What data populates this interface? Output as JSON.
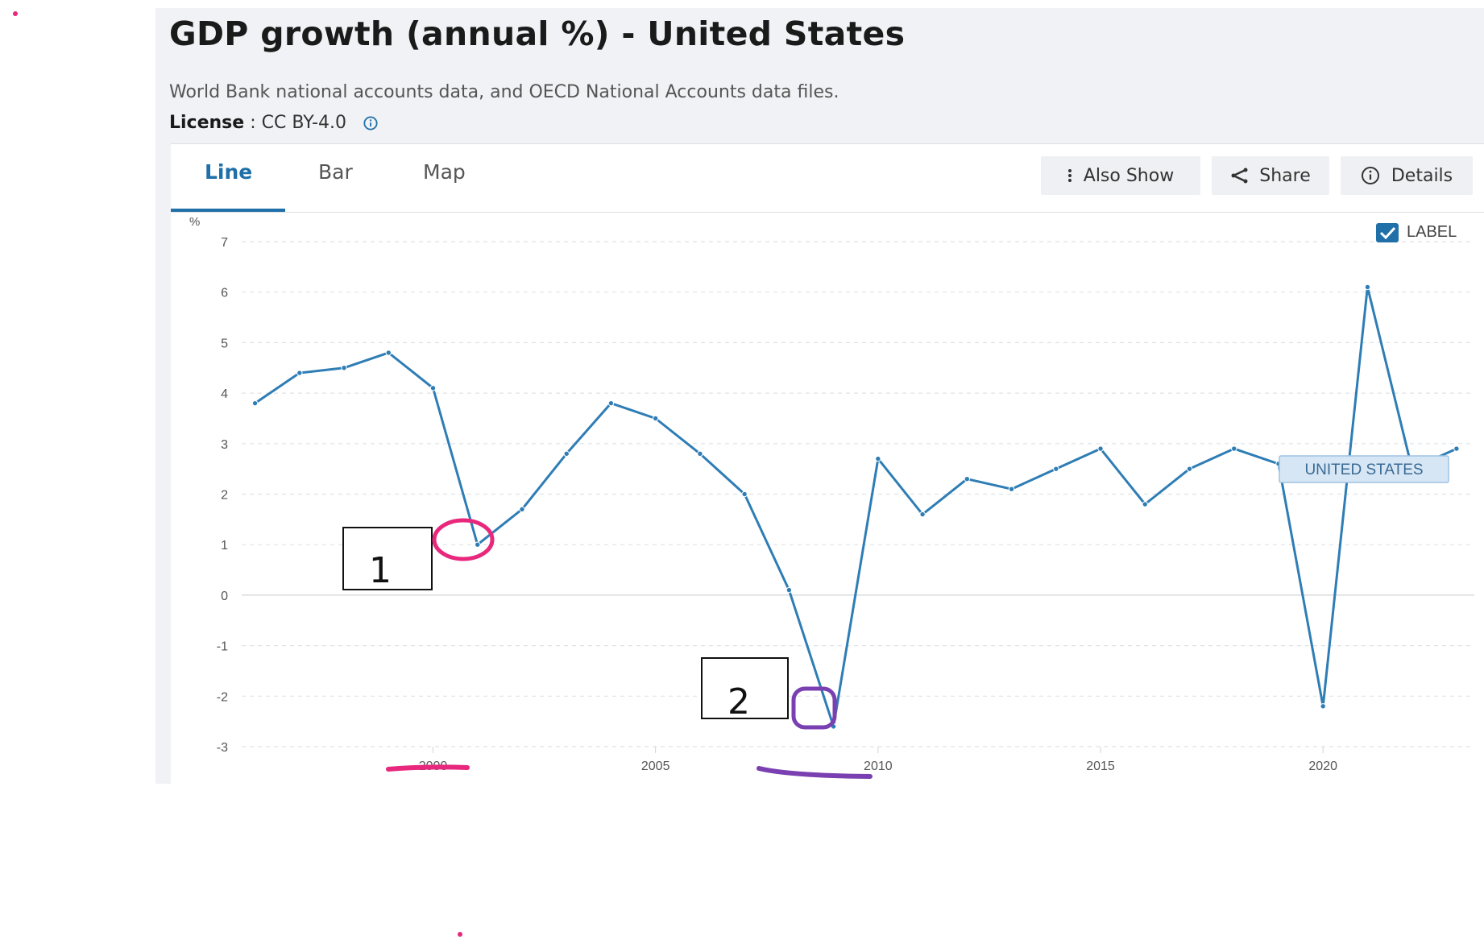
{
  "header": {
    "title": "GDP growth (annual %) - United States",
    "source": "World Bank national accounts data, and OECD National Accounts data files.",
    "license_label": "License",
    "license_sep": " : ",
    "license_value": "CC BY-4.0"
  },
  "tabs": [
    {
      "label": "Line",
      "active": true
    },
    {
      "label": "Bar",
      "active": false
    },
    {
      "label": "Map",
      "active": false
    }
  ],
  "actions": {
    "also_show": "Also Show",
    "share": "Share",
    "details": "Details"
  },
  "label_toggle": {
    "label": "LABEL",
    "checked": true
  },
  "annotations": {
    "box1": "1",
    "box2": "2"
  },
  "colors": {
    "line": "#2e7db5",
    "accent": "#1f6fa8",
    "circle1": "#e8287c",
    "circle2": "#7a3fb0",
    "series_label_bg": "#d6e6f4"
  },
  "chart_data": {
    "type": "line",
    "title": "GDP growth (annual %) - United States",
    "ylabel": "%",
    "xlabel": "",
    "ylim": [
      -3,
      7
    ],
    "xlim": [
      1995.7,
      2023.4
    ],
    "yticks": [
      7,
      6,
      5,
      4,
      3,
      2,
      1,
      0,
      -1,
      -2,
      -3
    ],
    "xticks": [
      2000,
      2005,
      2010,
      2015,
      2020
    ],
    "grid": true,
    "series": [
      {
        "name": "UNITED STATES",
        "x": [
          1996,
          1997,
          1998,
          1999,
          2000,
          2001,
          2002,
          2003,
          2004,
          2005,
          2006,
          2007,
          2008,
          2009,
          2010,
          2011,
          2012,
          2013,
          2014,
          2015,
          2016,
          2017,
          2018,
          2019,
          2020,
          2021,
          2022,
          2023
        ],
        "values": [
          3.8,
          4.4,
          4.5,
          4.8,
          4.1,
          1.0,
          1.7,
          2.8,
          3.8,
          3.5,
          2.8,
          2.0,
          0.1,
          -2.6,
          2.7,
          1.6,
          2.3,
          2.1,
          2.5,
          2.9,
          1.8,
          2.5,
          2.9,
          2.6,
          -2.2,
          6.1,
          2.5,
          2.9
        ]
      }
    ]
  }
}
